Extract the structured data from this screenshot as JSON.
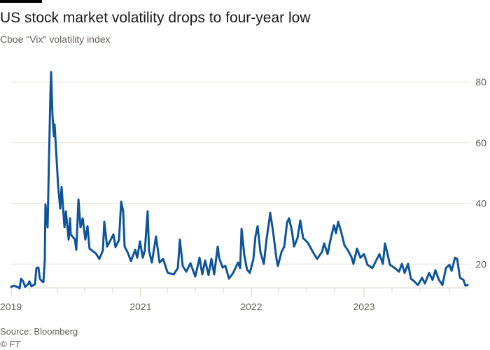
{
  "header": {
    "title": "US stock market volatility drops to four-year low",
    "subtitle": "Cboe \"Vix\" volatility index"
  },
  "footer": {
    "source": "Source: Bloomberg",
    "credit": "© FT"
  },
  "colors": {
    "line": "#0f5499",
    "grid": "#ece5dd",
    "axis": "#d9d1c9",
    "text": "#66605c"
  },
  "chart_data": {
    "type": "line",
    "title": "US stock market volatility drops to four-year low",
    "subtitle": "Cboe \"Vix\" volatility index",
    "xlabel": "",
    "ylabel": "",
    "ylim": [
      12.2,
      84
    ],
    "xlim": [
      2019.83,
      2024.07
    ],
    "grid": true,
    "y_ticks": [
      20,
      40,
      60,
      80
    ],
    "y_tick_labels": [
      "20",
      "40",
      "60",
      "80"
    ],
    "x_ticks": [
      2019.831,
      2020.0,
      2020.26,
      2020.513,
      2020.773,
      2021.032,
      2021.279,
      2021.539,
      2021.799,
      2022.058,
      2022.312,
      2022.571,
      2022.831,
      2023.104,
      2023.364,
      2023.623,
      2023.896
    ],
    "x_tick_labels": [
      {
        "label": "2019",
        "value": 2019.831
      },
      {
        "label": "2021",
        "value": 2021.032
      },
      {
        "label": "2022",
        "value": 2022.058
      },
      {
        "label": "2023",
        "value": 2023.104
      }
    ],
    "series": [
      {
        "name": "Vix",
        "x": [
          2019.831,
          2019.857,
          2019.89,
          2019.909,
          2019.922,
          2019.942,
          2019.961,
          2019.987,
          2020.0,
          2020.019,
          2020.052,
          2020.065,
          2020.084,
          2020.097,
          2020.117,
          2020.13,
          2020.143,
          2020.149,
          2020.169,
          2020.182,
          2020.195,
          2020.201,
          2020.214,
          2020.227,
          2020.234,
          2020.247,
          2020.266,
          2020.286,
          2020.299,
          2020.325,
          2020.338,
          2020.364,
          2020.377,
          2020.383,
          2020.422,
          2020.435,
          2020.455,
          2020.474,
          2020.494,
          2020.519,
          2020.539,
          2020.558,
          2020.617,
          2020.649,
          2020.682,
          2020.695,
          2020.721,
          2020.747,
          2020.779,
          2020.799,
          2020.831,
          2020.851,
          2020.87,
          2020.883,
          2020.916,
          2020.942,
          2020.981,
          2021.0,
          2021.026,
          2021.052,
          2021.071,
          2021.097,
          2021.11,
          2021.136,
          2021.175,
          2021.208,
          2021.24,
          2021.279,
          2021.286,
          2021.338,
          2021.377,
          2021.396,
          2021.422,
          2021.455,
          2021.494,
          2021.539,
          2021.578,
          2021.604,
          2021.63,
          2021.662,
          2021.688,
          2021.714,
          2021.747,
          2021.76,
          2021.792,
          2021.818,
          2021.851,
          2021.89,
          2021.935,
          2021.955,
          2021.968,
          2021.994,
          2022.019,
          2022.045,
          2022.078,
          2022.097,
          2022.117,
          2022.143,
          2022.175,
          2022.201,
          2022.221,
          2022.234,
          2022.26,
          2022.292,
          2022.305,
          2022.338,
          2022.364,
          2022.39,
          2022.409,
          2022.435,
          2022.455,
          2022.487,
          2022.513,
          2022.539,
          2022.584,
          2022.63,
          2022.669,
          2022.714,
          2022.734,
          2022.766,
          2022.792,
          2022.825,
          2022.844,
          2022.864,
          2022.89,
          2022.922,
          2022.955,
          2022.987,
          2023.006,
          2023.039,
          2023.071,
          2023.104,
          2023.136,
          2023.182,
          2023.214,
          2023.247,
          2023.279,
          2023.299,
          2023.318,
          2023.344,
          2023.383,
          2023.429,
          2023.455,
          2023.481,
          2023.513,
          2023.539,
          2023.571,
          2023.604,
          2023.643,
          2023.669,
          2023.708,
          2023.74,
          2023.766,
          2023.799,
          2023.831,
          2023.864,
          2023.896,
          2023.916,
          2023.948,
          2023.968,
          2023.994,
          2024.026,
          2024.045,
          2024.065
        ],
        "y": [
          12.5,
          12.9,
          12.5,
          12.0,
          15.2,
          14.3,
          12.5,
          13.4,
          14.3,
          12.7,
          13.4,
          18.7,
          18.9,
          15.2,
          14.3,
          14.1,
          21.2,
          39.7,
          32.1,
          54.7,
          75.9,
          83.3,
          69.0,
          62.1,
          66.0,
          58.1,
          45.9,
          38.3,
          45.4,
          32.1,
          37.4,
          28.1,
          35.1,
          29.8,
          28.1,
          24.7,
          41.3,
          32.1,
          35.1,
          28.1,
          32.5,
          25.1,
          23.5,
          21.7,
          24.5,
          33.9,
          25.8,
          27.5,
          29.8,
          25.6,
          27.9,
          40.6,
          37.4,
          25.8,
          23.5,
          21.0,
          24.7,
          22.1,
          27.5,
          22.1,
          24.5,
          37.4,
          24.5,
          20.5,
          29.1,
          20.5,
          21.7,
          17.5,
          17.1,
          16.6,
          18.7,
          28.1,
          19.4,
          17.5,
          20.3,
          15.9,
          22.1,
          16.6,
          21.2,
          16.4,
          21.7,
          16.6,
          25.8,
          22.1,
          18.9,
          19.4,
          15.2,
          17.1,
          20.5,
          18.7,
          31.6,
          22.8,
          18.2,
          17.1,
          21.7,
          29.1,
          32.5,
          24.0,
          20.1,
          28.6,
          33.2,
          36.9,
          30.9,
          21.7,
          19.4,
          24.0,
          25.8,
          33.7,
          35.1,
          30.9,
          25.8,
          28.6,
          34.4,
          28.6,
          27.0,
          24.0,
          21.7,
          24.0,
          26.8,
          23.3,
          27.9,
          32.8,
          30.2,
          33.9,
          30.9,
          26.3,
          24.5,
          22.4,
          20.1,
          25.1,
          22.1,
          23.3,
          19.8,
          18.7,
          21.0,
          23.3,
          20.1,
          26.8,
          24.0,
          19.8,
          18.9,
          17.5,
          20.1,
          17.1,
          20.1,
          15.2,
          14.3,
          13.1,
          15.5,
          13.6,
          17.1,
          14.8,
          18.0,
          14.8,
          13.1,
          18.7,
          19.8,
          17.8,
          22.1,
          21.7,
          15.5,
          14.8,
          12.9,
          13.1
        ]
      }
    ]
  }
}
